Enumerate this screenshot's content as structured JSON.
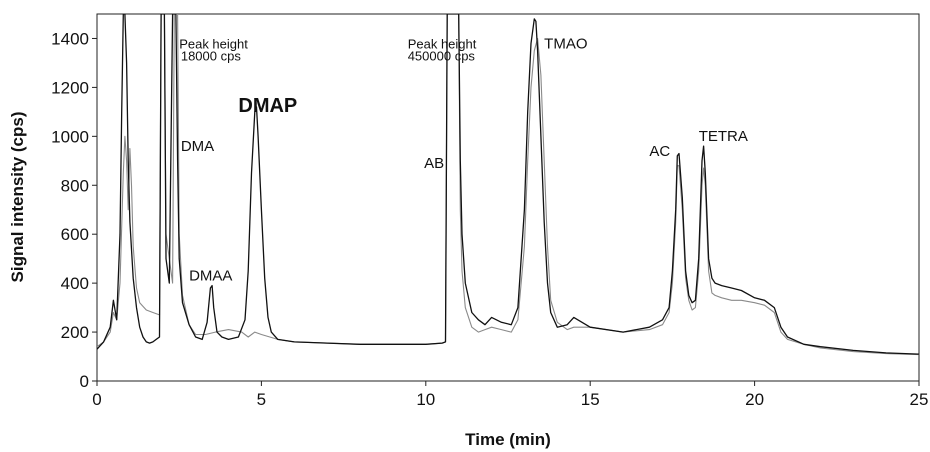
{
  "chart_data": {
    "type": "line",
    "xlabel": "Time (min)",
    "ylabel": "Signal intensity (cps)",
    "xlim": [
      0,
      25
    ],
    "ylim": [
      0,
      1500
    ],
    "x_ticks": [
      0,
      5,
      10,
      15,
      20,
      25
    ],
    "y_ticks": [
      0,
      200,
      400,
      600,
      800,
      1000,
      1200,
      1400
    ],
    "grid": false,
    "colors": {
      "series_black": "#111111",
      "series_gray": "#8a8a8a",
      "axis": "#222222"
    },
    "series": [
      {
        "color": "#111111",
        "x": [
          0,
          0.2,
          0.4,
          0.5,
          0.6,
          0.7,
          0.75,
          0.8,
          0.85,
          0.9,
          0.95,
          1.0,
          1.1,
          1.2,
          1.3,
          1.4,
          1.5,
          1.6,
          1.7,
          1.8,
          1.9,
          1.95,
          2.0,
          2.05,
          2.1,
          2.2,
          2.3,
          2.35,
          2.4,
          2.45,
          2.5,
          2.6,
          2.8,
          3.0,
          3.2,
          3.35,
          3.45,
          3.5,
          3.55,
          3.65,
          3.8,
          4.0,
          4.3,
          4.5,
          4.6,
          4.7,
          4.8,
          4.85,
          4.9,
          5.0,
          5.1,
          5.2,
          5.3,
          5.5,
          6.0,
          7.0,
          8.0,
          9.0,
          10.0,
          10.5,
          10.6,
          10.65,
          10.7,
          10.8,
          11.0,
          11.05,
          11.1,
          11.2,
          11.4,
          11.6,
          11.8,
          12.0,
          12.3,
          12.6,
          12.8,
          13.0,
          13.1,
          13.2,
          13.3,
          13.35,
          13.4,
          13.5,
          13.6,
          13.7,
          13.8,
          14.0,
          14.3,
          14.5,
          15.0,
          16.0,
          16.8,
          17.2,
          17.4,
          17.5,
          17.6,
          17.65,
          17.7,
          17.8,
          17.9,
          18.0,
          18.1,
          18.2,
          18.3,
          18.4,
          18.45,
          18.5,
          18.6,
          18.7,
          18.8,
          19.0,
          19.3,
          19.6,
          20.0,
          20.3,
          20.6,
          20.8,
          21.0,
          21.5,
          22.0,
          23.0,
          24.0,
          25.0
        ],
        "y": [
          130,
          160,
          220,
          330,
          250,
          600,
          1100,
          1500,
          1500,
          1300,
          900,
          650,
          420,
          300,
          220,
          180,
          160,
          155,
          160,
          170,
          180,
          1500,
          1500,
          1500,
          500,
          400,
          1500,
          1500,
          1500,
          900,
          500,
          320,
          230,
          180,
          170,
          240,
          380,
          390,
          300,
          200,
          180,
          170,
          180,
          250,
          450,
          850,
          1100,
          1120,
          1000,
          700,
          420,
          260,
          200,
          170,
          160,
          155,
          150,
          150,
          150,
          155,
          160,
          1500,
          1500,
          1500,
          1500,
          900,
          600,
          400,
          280,
          250,
          230,
          260,
          240,
          230,
          300,
          700,
          1100,
          1380,
          1480,
          1470,
          1350,
          1000,
          650,
          400,
          280,
          220,
          230,
          260,
          220,
          200,
          220,
          250,
          300,
          450,
          700,
          920,
          930,
          750,
          450,
          350,
          320,
          330,
          500,
          900,
          960,
          850,
          500,
          420,
          400,
          390,
          380,
          370,
          340,
          330,
          300,
          220,
          180,
          150,
          140,
          125,
          115,
          110
        ]
      },
      {
        "color": "#8a8a8a",
        "x": [
          0,
          0.2,
          0.4,
          0.5,
          0.6,
          0.7,
          0.8,
          0.85,
          0.9,
          0.95,
          1.0,
          1.05,
          1.1,
          1.2,
          1.3,
          1.5,
          1.7,
          1.9,
          1.95,
          2.0,
          2.05,
          2.1,
          2.3,
          2.35,
          2.4,
          2.45,
          2.5,
          2.6,
          2.8,
          3.0,
          3.3,
          3.6,
          4.0,
          4.4,
          4.6,
          4.8,
          5.0,
          5.5,
          6.0,
          7.0,
          8.0,
          9.0,
          10.0,
          10.5,
          10.6,
          10.65,
          10.7,
          11.0,
          11.05,
          11.1,
          11.2,
          11.4,
          11.6,
          11.8,
          12.0,
          12.3,
          12.6,
          12.8,
          13.0,
          13.1,
          13.2,
          13.3,
          13.4,
          13.5,
          13.6,
          13.7,
          13.8,
          14.0,
          14.3,
          14.5,
          15.0,
          16.0,
          16.8,
          17.2,
          17.4,
          17.5,
          17.6,
          17.65,
          17.7,
          17.8,
          17.9,
          18.0,
          18.1,
          18.2,
          18.3,
          18.4,
          18.45,
          18.5,
          18.6,
          18.7,
          18.8,
          19.0,
          19.3,
          19.6,
          20.0,
          20.3,
          20.6,
          20.8,
          21.0,
          21.5,
          22.0,
          23.0,
          24.0,
          25.0
        ],
        "y": [
          140,
          160,
          200,
          280,
          250,
          400,
          850,
          1000,
          900,
          700,
          950,
          800,
          550,
          380,
          320,
          290,
          280,
          270,
          1500,
          1500,
          1500,
          600,
          400,
          1500,
          1500,
          1500,
          600,
          350,
          230,
          190,
          190,
          200,
          210,
          200,
          180,
          200,
          190,
          170,
          160,
          155,
          150,
          150,
          150,
          155,
          160,
          1500,
          1500,
          1500,
          700,
          450,
          300,
          220,
          200,
          210,
          220,
          210,
          200,
          250,
          550,
          900,
          1200,
          1350,
          1400,
          1250,
          900,
          550,
          330,
          240,
          210,
          220,
          220,
          200,
          210,
          230,
          280,
          400,
          650,
          880,
          880,
          700,
          420,
          330,
          290,
          300,
          450,
          800,
          870,
          800,
          450,
          360,
          350,
          340,
          330,
          330,
          320,
          310,
          280,
          200,
          170,
          150,
          135,
          120,
          112,
          108
        ]
      }
    ],
    "annotations": [
      {
        "text": "Peak height",
        "x": 2.5,
        "y": 1360
      },
      {
        "text": "18000 cps",
        "x": 2.55,
        "y": 1310
      },
      {
        "text": "DMA",
        "x": 2.55,
        "y": 940
      },
      {
        "text": "DMAP",
        "x": 4.3,
        "y": 1100
      },
      {
        "text": "DMAA",
        "x": 2.8,
        "y": 410
      },
      {
        "text": "Peak height",
        "x": 9.45,
        "y": 1360
      },
      {
        "text": "450000 cps",
        "x": 9.45,
        "y": 1310
      },
      {
        "text": "AB",
        "x": 9.95,
        "y": 870
      },
      {
        "text": "TMAO",
        "x": 13.6,
        "y": 1360
      },
      {
        "text": "AC",
        "x": 16.8,
        "y": 920
      },
      {
        "text": "TETRA",
        "x": 18.3,
        "y": 980
      }
    ]
  }
}
